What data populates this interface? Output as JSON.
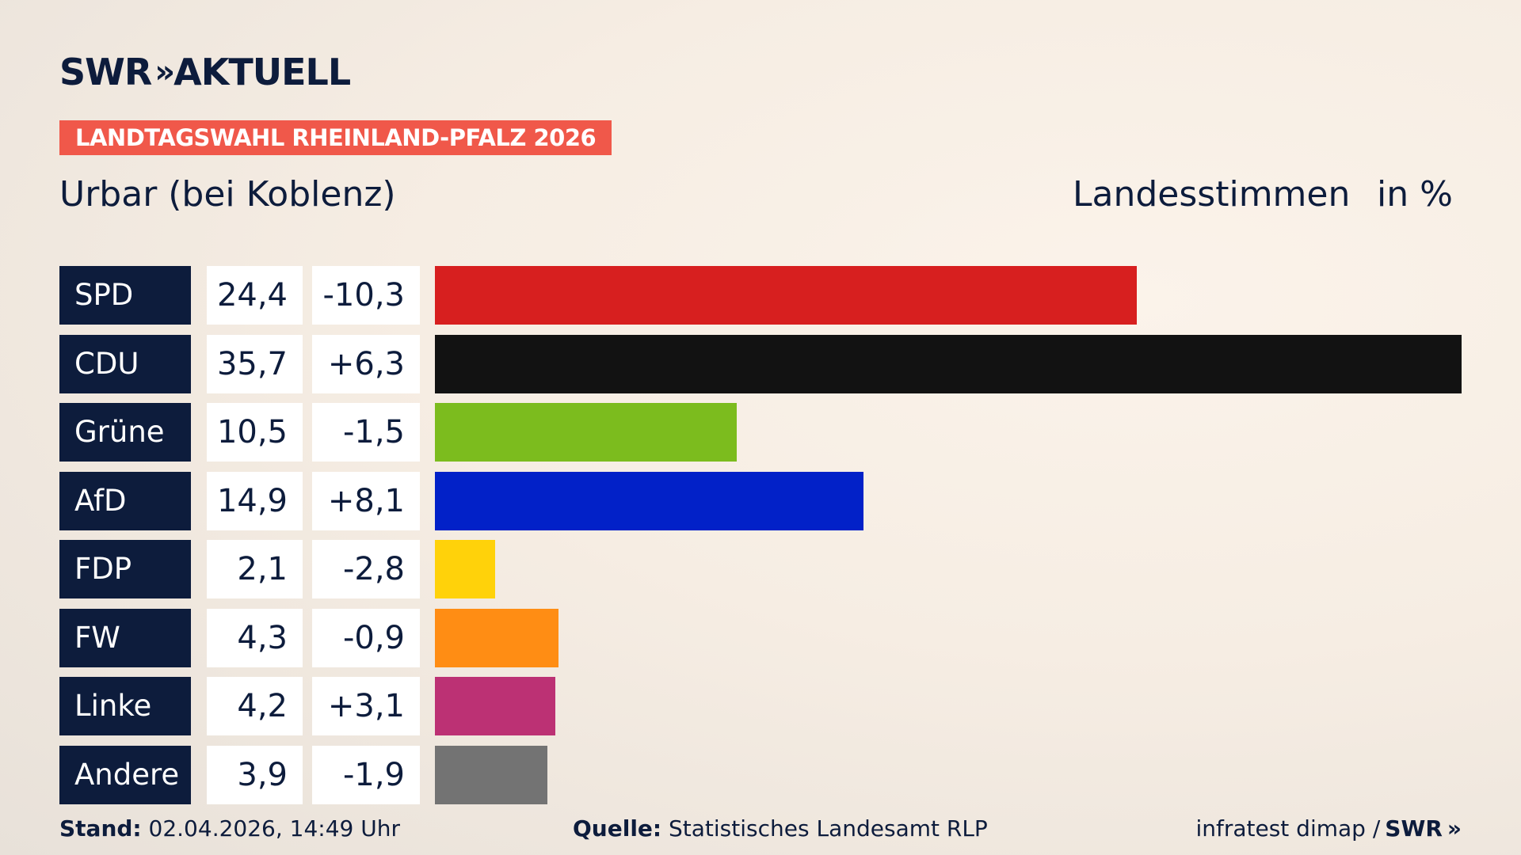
{
  "header": {
    "logo_text": "SWR",
    "logo_chevrons": "»",
    "logo_suffix": "AKTUELL",
    "badge": "LANDTAGSWAHL RHEINLAND-PFALZ 2026",
    "place": "Urbar (bei Koblenz)",
    "votes_label": "Landesstimmen",
    "unit_label": "in %"
  },
  "chart_data": {
    "type": "bar",
    "orientation": "horizontal",
    "categories": [
      "SPD",
      "CDU",
      "Grüne",
      "AfD",
      "FDP",
      "FW",
      "Linke",
      "Andere"
    ],
    "values": [
      24.4,
      35.7,
      10.5,
      14.9,
      2.1,
      4.3,
      4.2,
      3.9
    ],
    "value_labels": [
      "24,4",
      "35,7",
      "10,5",
      "14,9",
      "2,1",
      "4,3",
      "4,2",
      "3,9"
    ],
    "diff_labels": [
      "-10,3",
      "+6,3",
      "-1,5",
      "+8,1",
      "-2,8",
      "-0,9",
      "+3,1",
      "-1,9"
    ],
    "colors": [
      "#d71f1f",
      "#121212",
      "#7cbc1e",
      "#0221c8",
      "#ffd20a",
      "#ff8d14",
      "#bc3174",
      "#737373"
    ],
    "xlim": [
      0,
      35.7
    ]
  },
  "footer": {
    "stand_label": "Stand:",
    "stand_value": "02.04.2026, 14:49 Uhr",
    "source_label": "Quelle:",
    "source_value": "Statistisches Landesamt RLP",
    "pollster": "infratest dimap /",
    "brand": "SWR",
    "brand_chevrons": "»"
  }
}
